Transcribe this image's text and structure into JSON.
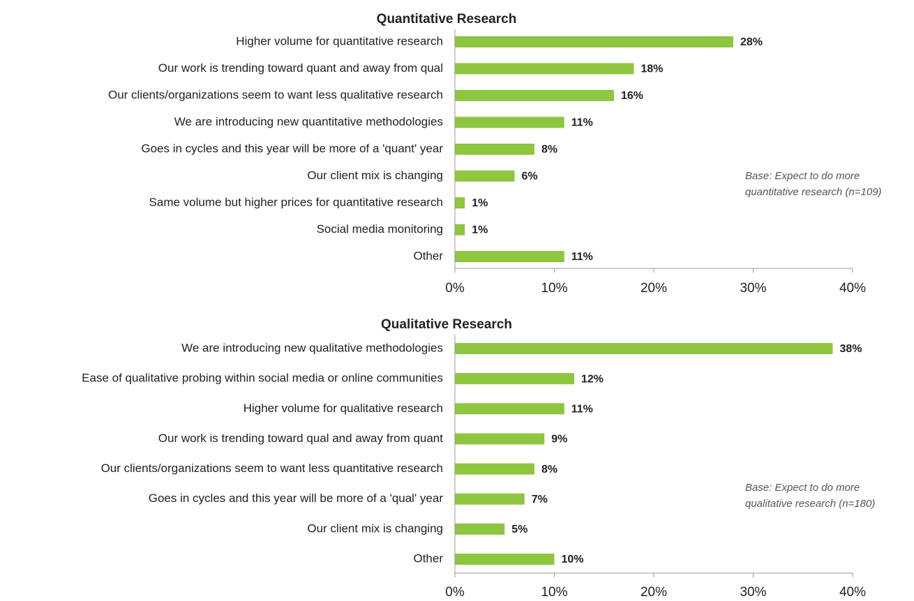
{
  "chart_data": [
    {
      "type": "bar",
      "title": "Quantitative Research",
      "categories": [
        "Higher volume for quantitative research",
        "Our work is trending toward quant and away from qual",
        "Our clients/organizations seem to want less qualitative research",
        "We are introducing new quantitative methodologies",
        "Goes in cycles and this year will be more of a 'quant' year",
        "Our client mix is changing",
        "Same volume but higher prices for quantitative research",
        "Social media monitoring",
        "Other"
      ],
      "values": [
        28,
        18,
        16,
        11,
        8,
        6,
        1,
        1,
        11
      ],
      "value_labels": [
        "28%",
        "18%",
        "16%",
        "11%",
        "8%",
        "6%",
        "1%",
        "1%",
        "11%"
      ],
      "color": "#8dc63f",
      "xlim": [
        0,
        40
      ],
      "xticks": [
        {
          "value": 0,
          "label": "0%"
        },
        {
          "value": 10,
          "label": "10%"
        },
        {
          "value": 20,
          "label": "20%"
        },
        {
          "value": 30,
          "label": "30%"
        },
        {
          "value": 40,
          "label": "40%"
        }
      ],
      "annotation": [
        "Base: Expect to do more",
        "quantitative research (n=109)"
      ]
    },
    {
      "type": "bar",
      "title": "Qualitative Research",
      "categories": [
        "We are introducing new qualitative methodologies",
        "Ease of qualitative probing within social media or online communities",
        "Higher volume for qualitative research",
        "Our work is trending toward qual and away from quant",
        "Our clients/organizations seem to want less quantitative research",
        "Goes in cycles and this year will be more of a 'qual' year",
        "Our client mix is changing",
        "Other"
      ],
      "values": [
        38,
        12,
        11,
        9,
        8,
        7,
        5,
        10
      ],
      "value_labels": [
        "38%",
        "12%",
        "11%",
        "9%",
        "8%",
        "7%",
        "5%",
        "10%"
      ],
      "color": "#8dc63f",
      "xlim": [
        0,
        40
      ],
      "xticks": [
        {
          "value": 0,
          "label": "0%"
        },
        {
          "value": 10,
          "label": "10%"
        },
        {
          "value": 20,
          "label": "20%"
        },
        {
          "value": 30,
          "label": "30%"
        },
        {
          "value": 40,
          "label": "40%"
        }
      ],
      "annotation": [
        "Base: Expect to do more",
        "qualitative research (n=180)"
      ]
    }
  ]
}
